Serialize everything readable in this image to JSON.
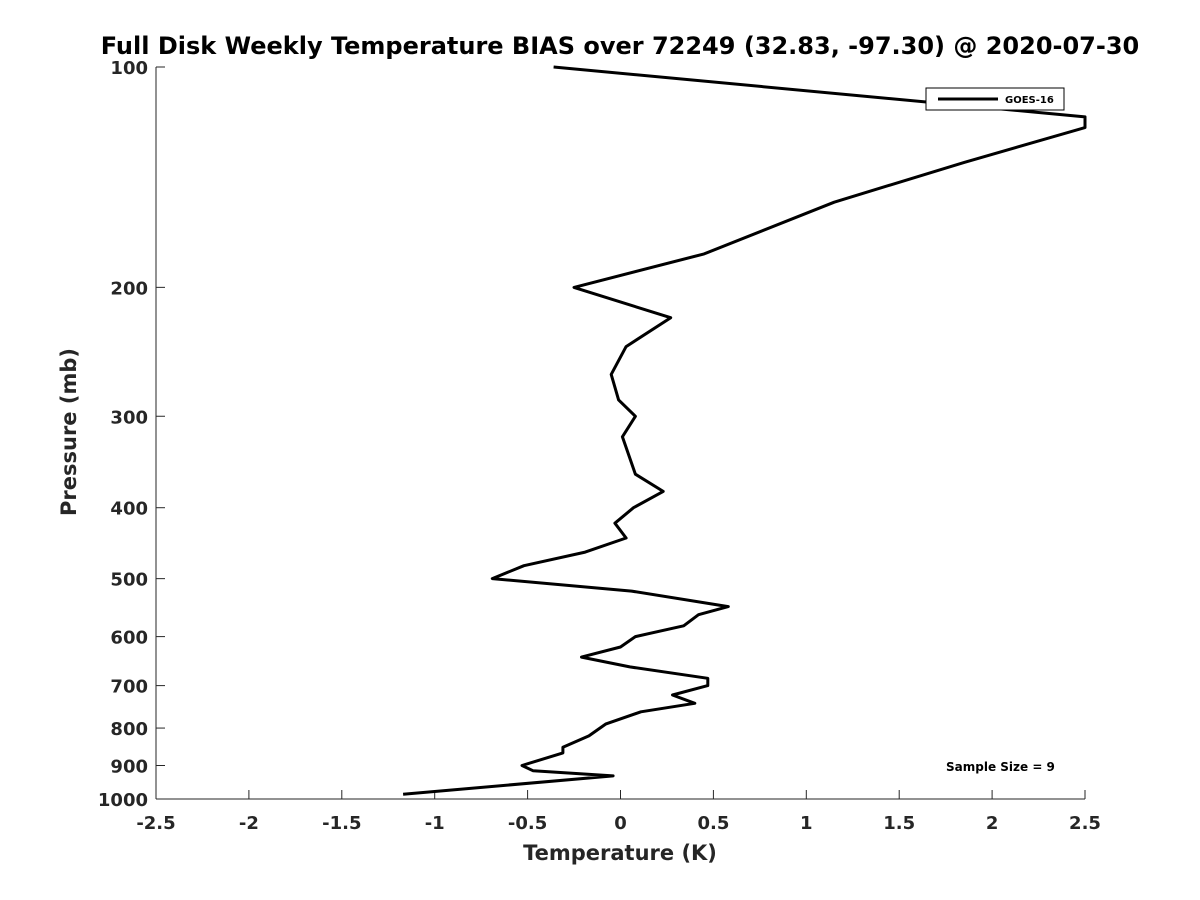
{
  "chart_data": {
    "type": "line",
    "title": "Full Disk Weekly Temperature BIAS over 72249 (32.83, -97.30) @ 2020-07-30",
    "xlabel": "Temperature (K)",
    "ylabel": "Pressure (mb)",
    "xlim": [
      -2.5,
      2.5
    ],
    "ylim": [
      1000,
      100
    ],
    "yscale": "log",
    "y_reversed": true,
    "xticks": [
      "-2.5",
      "-2",
      "-1.5",
      "-1",
      "-0.5",
      "0",
      "0.5",
      "1",
      "1.5",
      "2",
      "2.5"
    ],
    "yticks": [
      "100",
      "200",
      "300",
      "400",
      "500",
      "600",
      "700",
      "800",
      "900",
      "1000"
    ],
    "grid": false,
    "legend_position": "top-right",
    "annotation": "Sample Size = 9",
    "series": [
      {
        "name": "GOES-16",
        "color": "#000000",
        "points": [
          {
            "x": -0.36,
            "y": 100
          },
          {
            "x": 2.5,
            "y": 117
          },
          {
            "x": 2.5,
            "y": 121
          },
          {
            "x": 1.85,
            "y": 135
          },
          {
            "x": 1.15,
            "y": 153
          },
          {
            "x": 0.45,
            "y": 180
          },
          {
            "x": -0.25,
            "y": 200
          },
          {
            "x": 0.27,
            "y": 220
          },
          {
            "x": 0.03,
            "y": 241
          },
          {
            "x": -0.05,
            "y": 263
          },
          {
            "x": -0.01,
            "y": 285
          },
          {
            "x": 0.08,
            "y": 300
          },
          {
            "x": 0.01,
            "y": 320
          },
          {
            "x": 0.08,
            "y": 360
          },
          {
            "x": 0.23,
            "y": 380
          },
          {
            "x": 0.07,
            "y": 400
          },
          {
            "x": -0.03,
            "y": 420
          },
          {
            "x": 0.03,
            "y": 440
          },
          {
            "x": -0.19,
            "y": 460
          },
          {
            "x": -0.52,
            "y": 480
          },
          {
            "x": -0.69,
            "y": 500
          },
          {
            "x": 0.06,
            "y": 520
          },
          {
            "x": 0.58,
            "y": 546
          },
          {
            "x": 0.42,
            "y": 560
          },
          {
            "x": 0.34,
            "y": 580
          },
          {
            "x": 0.08,
            "y": 600
          },
          {
            "x": 0.0,
            "y": 620
          },
          {
            "x": -0.21,
            "y": 640
          },
          {
            "x": 0.05,
            "y": 660
          },
          {
            "x": 0.47,
            "y": 684
          },
          {
            "x": 0.47,
            "y": 700
          },
          {
            "x": 0.28,
            "y": 721
          },
          {
            "x": 0.4,
            "y": 740
          },
          {
            "x": 0.11,
            "y": 760
          },
          {
            "x": -0.08,
            "y": 790
          },
          {
            "x": -0.17,
            "y": 820
          },
          {
            "x": -0.31,
            "y": 850
          },
          {
            "x": -0.31,
            "y": 865
          },
          {
            "x": -0.53,
            "y": 900
          },
          {
            "x": -0.47,
            "y": 915
          },
          {
            "x": -0.04,
            "y": 930
          },
          {
            "x": -1.17,
            "y": 985
          }
        ]
      }
    ]
  }
}
